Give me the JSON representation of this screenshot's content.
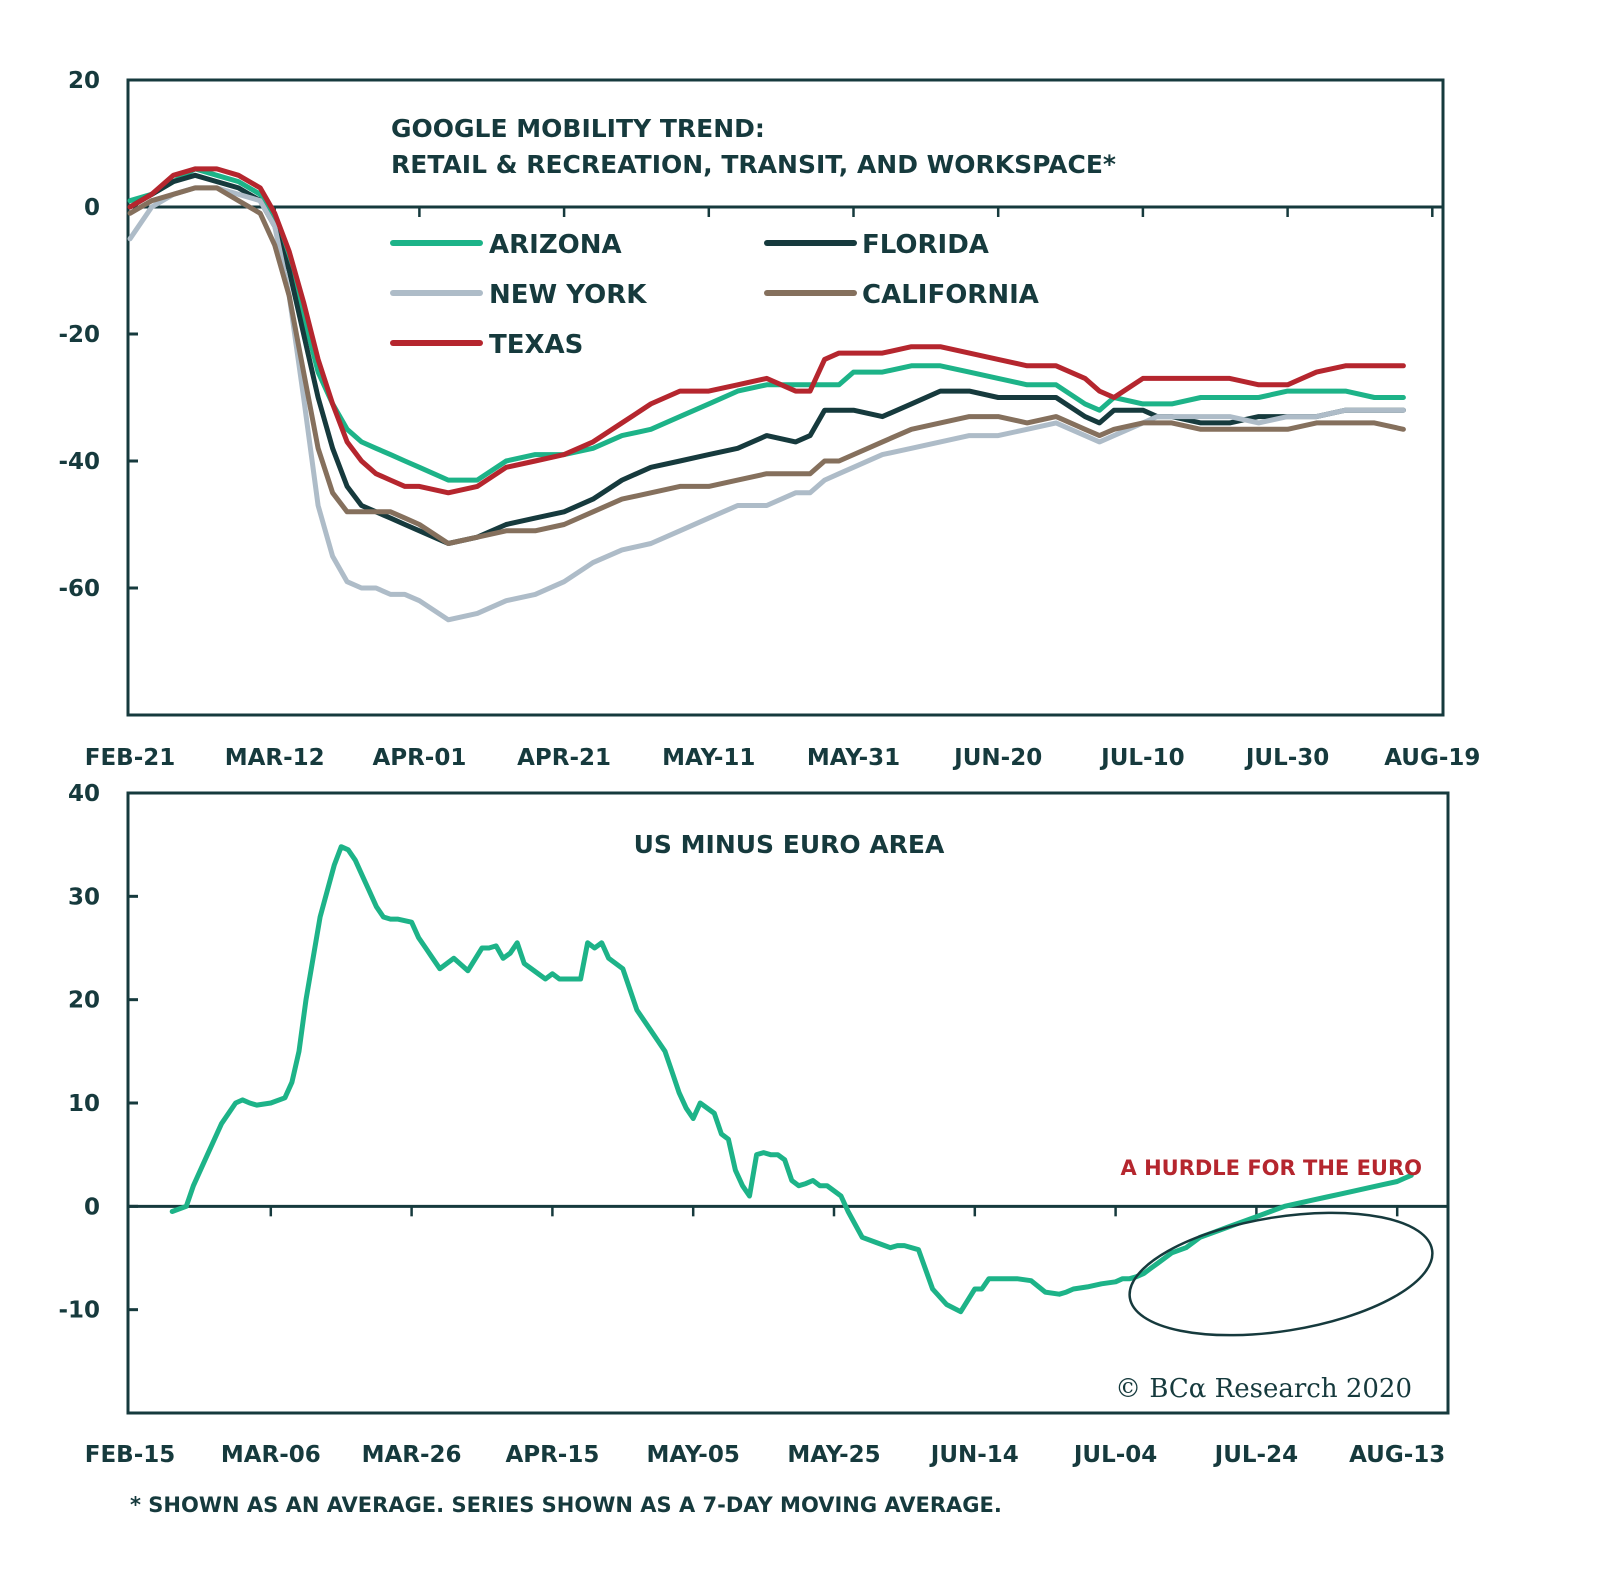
{
  "chart_data": [
    {
      "type": "line",
      "title": "GOOGLE MOBILITY TREND:",
      "subtitle": "RETAIL & RECREATION, TRANSIT, AND WORKSPACE*",
      "xlabel": "",
      "ylabel": "",
      "ylim": [
        -80,
        20
      ],
      "yticks": [
        20,
        0,
        -20,
        -40,
        -60
      ],
      "ytick_labels": [
        "20",
        "0",
        "-20",
        "-40",
        "-60"
      ],
      "x_day_range": [
        0,
        182
      ],
      "x_ticks_day": [
        0,
        20,
        40,
        60,
        80,
        100,
        120,
        140,
        160,
        180
      ],
      "x_tick_labels": [
        "FEB-21",
        "MAR-12",
        "APR-01",
        "APR-21",
        "MAY-11",
        "MAY-31",
        "JUN-20",
        "JUL-10",
        "JUL-30",
        "AUG-19"
      ],
      "zero_line": true,
      "legend_position": "top-left",
      "x_days": [
        0,
        3,
        6,
        9,
        12,
        15,
        18,
        20,
        22,
        24,
        26,
        28,
        30,
        32,
        34,
        36,
        38,
        40,
        44,
        48,
        52,
        56,
        60,
        64,
        68,
        72,
        76,
        80,
        84,
        88,
        92,
        94,
        96,
        98,
        100,
        104,
        108,
        112,
        116,
        120,
        124,
        128,
        132,
        134,
        136,
        140,
        142,
        144,
        148,
        152,
        156,
        160,
        164,
        168,
        172,
        176
      ],
      "series": [
        {
          "name": "ARIZONA",
          "color": "#1db388",
          "values": [
            1,
            2,
            4,
            6,
            5,
            4,
            2,
            -2,
            -8,
            -17,
            -26,
            -31,
            -35,
            -37,
            -38,
            -39,
            -40,
            -41,
            -43,
            -43,
            -40,
            -39,
            -39,
            -38,
            -36,
            -35,
            -33,
            -31,
            -29,
            -28,
            -28,
            -28,
            -28,
            -28,
            -26,
            -26,
            -25,
            -25,
            -26,
            -27,
            -28,
            -28,
            -31,
            -32,
            -30,
            -31,
            -31,
            -31,
            -30,
            -30,
            -30,
            -29,
            -29,
            -29,
            -30,
            -30
          ]
        },
        {
          "name": "FLORIDA",
          "color": "#163a3d",
          "values": [
            0,
            2,
            4,
            5,
            4,
            3,
            1,
            -3,
            -10,
            -20,
            -30,
            -38,
            -44,
            -47,
            -48,
            -49,
            -50,
            -51,
            -53,
            -52,
            -50,
            -49,
            -48,
            -46,
            -43,
            -41,
            -40,
            -39,
            -38,
            -36,
            -37,
            -36,
            -32,
            -32,
            -32,
            -33,
            -31,
            -29,
            -29,
            -30,
            -30,
            -30,
            -33,
            -34,
            -32,
            -32,
            -33,
            -33,
            -34,
            -34,
            -33,
            -33,
            -33,
            -32,
            -32,
            -32
          ]
        },
        {
          "name": "NEW YORK",
          "color": "#aebcc8",
          "values": [
            -5,
            0,
            2,
            3,
            3,
            2,
            1,
            -3,
            -14,
            -30,
            -47,
            -55,
            -59,
            -60,
            -60,
            -61,
            -61,
            -62,
            -65,
            -64,
            -62,
            -61,
            -59,
            -56,
            -54,
            -53,
            -51,
            -49,
            -47,
            -47,
            -45,
            -45,
            -43,
            -42,
            -41,
            -39,
            -38,
            -37,
            -36,
            -36,
            -35,
            -34,
            -36,
            -37,
            -36,
            -34,
            -33,
            -33,
            -33,
            -33,
            -34,
            -33,
            -33,
            -32,
            -32,
            -32
          ]
        },
        {
          "name": "CALIFORNIA",
          "color": "#85705d",
          "values": [
            -1,
            1,
            2,
            3,
            3,
            1,
            -1,
            -6,
            -14,
            -26,
            -38,
            -45,
            -48,
            -48,
            -48,
            -48,
            -49,
            -50,
            -53,
            -52,
            -51,
            -51,
            -50,
            -48,
            -46,
            -45,
            -44,
            -44,
            -43,
            -42,
            -42,
            -42,
            -40,
            -40,
            -39,
            -37,
            -35,
            -34,
            -33,
            -33,
            -34,
            -33,
            -35,
            -36,
            -35,
            -34,
            -34,
            -34,
            -35,
            -35,
            -35,
            -35,
            -34,
            -34,
            -34,
            -35
          ]
        },
        {
          "name": "TEXAS",
          "color": "#b5262e",
          "values": [
            0,
            2,
            5,
            6,
            6,
            5,
            3,
            -1,
            -7,
            -15,
            -24,
            -31,
            -37,
            -40,
            -42,
            -43,
            -44,
            -44,
            -45,
            -44,
            -41,
            -40,
            -39,
            -37,
            -34,
            -31,
            -29,
            -29,
            -28,
            -27,
            -29,
            -29,
            -24,
            -23,
            -23,
            -23,
            -22,
            -22,
            -23,
            -24,
            -25,
            -25,
            -27,
            -29,
            -30,
            -27,
            -27,
            -27,
            -27,
            -27,
            -28,
            -28,
            -26,
            -25,
            -25,
            -25
          ]
        }
      ]
    },
    {
      "type": "line",
      "title": "US MINUS EURO AREA",
      "xlabel": "",
      "ylabel": "",
      "ylim": [
        -20,
        40
      ],
      "yticks": [
        40,
        30,
        20,
        10,
        0,
        -10
      ],
      "ytick_labels": [
        "40",
        "30",
        "20",
        "10",
        "0",
        "-10"
      ],
      "x_day_range": [
        0,
        182
      ],
      "x_ticks_day": [
        0,
        20,
        40,
        60,
        80,
        100,
        120,
        140,
        160,
        180
      ],
      "x_tick_labels": [
        "FEB-15",
        "MAR-06",
        "MAR-26",
        "APR-15",
        "MAY-05",
        "MAY-25",
        "JUN-14",
        "JUL-04",
        "JUL-24",
        "AUG-13"
      ],
      "zero_line": true,
      "annotations": [
        {
          "text": "A HURDLE FOR THE EURO",
          "color": "#b5262e",
          "type": "label"
        },
        {
          "type": "ellipse",
          "target_days": [
            142,
            184
          ],
          "target_values": [
            -12,
            -2
          ],
          "color": "#163a3d"
        }
      ],
      "series": [
        {
          "name": "US minus Euro Area",
          "color": "#1db388",
          "x_days": [
            6,
            8,
            9,
            11,
            13,
            15,
            16,
            17,
            18,
            20,
            22,
            23,
            24,
            25,
            27,
            29,
            30,
            31,
            32,
            33,
            34,
            35,
            36,
            37,
            38,
            40,
            41,
            42,
            43,
            44,
            46,
            48,
            50,
            51,
            52,
            53,
            54,
            55,
            56,
            57,
            58,
            59,
            60,
            61,
            62,
            63,
            64,
            65,
            66,
            67,
            68,
            70,
            72,
            74,
            75,
            76,
            77,
            78,
            79,
            80,
            81,
            82,
            83,
            84,
            85,
            86,
            87,
            88,
            89,
            90,
            91,
            92,
            93,
            94,
            95,
            96,
            97,
            98,
            99,
            100,
            101,
            102,
            104,
            106,
            108,
            109,
            110,
            112,
            114,
            116,
            118,
            120,
            121,
            122,
            124,
            126,
            128,
            130,
            132,
            133,
            134,
            136,
            138,
            140,
            141,
            142,
            143,
            144,
            145,
            146,
            148,
            150,
            152,
            154,
            156,
            158,
            160,
            162,
            164,
            166,
            168,
            170,
            172,
            174,
            176,
            178,
            180,
            181,
            182
          ],
          "values": [
            -0.5,
            0,
            2,
            5,
            8,
            10,
            10.3,
            10,
            9.8,
            10,
            10.5,
            12,
            15,
            20,
            28,
            33,
            34.8,
            34.5,
            33.5,
            32,
            30.5,
            29,
            28,
            27.8,
            27.8,
            27.5,
            26,
            25,
            24,
            23,
            24,
            22.8,
            25,
            25,
            25.2,
            24,
            24.5,
            25.5,
            23.5,
            23,
            22.5,
            22,
            22.5,
            22,
            22,
            22,
            22,
            25.5,
            25,
            25.5,
            24,
            23,
            19,
            17,
            16,
            15,
            13,
            11,
            9.5,
            8.5,
            10,
            9.5,
            9,
            7,
            6.5,
            3.5,
            2,
            1,
            5,
            5.2,
            5,
            5,
            4.5,
            2.5,
            2,
            2.2,
            2.5,
            2,
            2,
            1.5,
            1,
            -0.5,
            -3,
            -3.5,
            -4,
            -3.8,
            -3.8,
            -4.2,
            -8,
            -9.5,
            -10.2,
            -8,
            -8,
            -7,
            -7,
            -7,
            -7.2,
            -8.3,
            -8.5,
            -8.3,
            -8,
            -7.8,
            -7.5,
            -7.3,
            -7,
            -7,
            -6.8,
            -6.5,
            -6,
            -5.5,
            -4.5,
            -4,
            -3,
            -2.5,
            -2,
            -1.5,
            -1,
            -0.5,
            0,
            0.3,
            0.6,
            0.9,
            1.2,
            1.5,
            1.8,
            2.1,
            2.4,
            2.7,
            3
          ]
        }
      ]
    }
  ],
  "top_chart": {
    "title_line1": "GOOGLE MOBILITY TREND:",
    "title_line2": "RETAIL & RECREATION, TRANSIT, AND WORKSPACE*",
    "legend": [
      {
        "label": "ARIZONA",
        "color": "#1db388"
      },
      {
        "label": "FLORIDA",
        "color": "#163a3d"
      },
      {
        "label": "NEW YORK",
        "color": "#aebcc8"
      },
      {
        "label": "CALIFORNIA",
        "color": "#85705d"
      },
      {
        "label": "TEXAS",
        "color": "#b5262e"
      }
    ]
  },
  "bottom_chart": {
    "title": "US MINUS EURO AREA",
    "annotation": "A HURDLE FOR THE EURO",
    "copyright": "© BCα Research 2020"
  },
  "footnote": "* SHOWN AS AN AVERAGE. SERIES SHOWN AS A 7-DAY MOVING AVERAGE.",
  "colors": {
    "axis": "#163a3d",
    "annotation": "#b5262e"
  }
}
